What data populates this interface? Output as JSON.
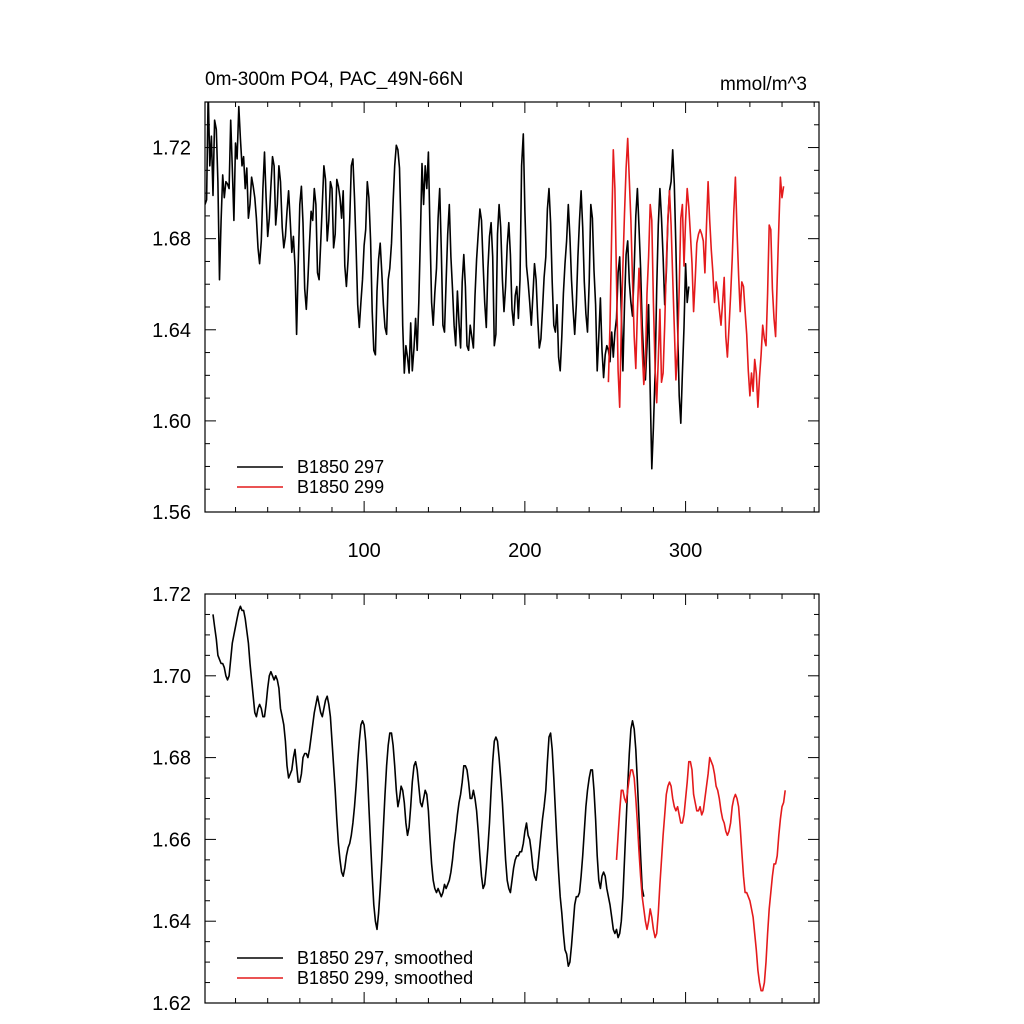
{
  "colors": {
    "run_297": "#000000",
    "run_299": "#e41a1c",
    "axes": "#000000"
  },
  "chart_data": [
    {
      "type": "line",
      "title": "0m-300m PO4, PAC_49N-66N",
      "units": "mmol/m^3",
      "xlim": [
        1,
        383
      ],
      "ylim": [
        1.56,
        1.74
      ],
      "y_ticks": [
        1.56,
        1.6,
        1.64,
        1.68,
        1.72
      ],
      "x_ticks": [
        100,
        200,
        300
      ],
      "legend_position": "bottom-left",
      "series": [
        {
          "name": "B1850 297",
          "color": "#000000",
          "x_start": 1,
          "values": [
            1.695,
            1.697,
            1.745,
            1.712,
            1.725,
            1.699,
            1.732,
            1.728,
            1.705,
            1.662,
            1.688,
            1.708,
            1.698,
            1.705,
            1.704,
            1.702,
            1.732,
            1.711,
            1.688,
            1.722,
            1.715,
            1.738,
            1.724,
            1.712,
            1.716,
            1.702,
            1.711,
            1.689,
            1.695,
            1.707,
            1.703,
            1.698,
            1.689,
            1.676,
            1.669,
            1.679,
            1.702,
            1.718,
            1.698,
            1.681,
            1.689,
            1.703,
            1.716,
            1.712,
            1.686,
            1.695,
            1.712,
            1.705,
            1.685,
            1.676,
            1.681,
            1.692,
            1.701,
            1.688,
            1.674,
            1.681,
            1.668,
            1.638,
            1.668,
            1.695,
            1.703,
            1.687,
            1.658,
            1.649,
            1.662,
            1.678,
            1.692,
            1.688,
            1.702,
            1.695,
            1.665,
            1.662,
            1.678,
            1.695,
            1.712,
            1.706,
            1.679,
            1.688,
            1.705,
            1.702,
            1.676,
            1.682,
            1.706,
            1.703,
            1.698,
            1.689,
            1.701,
            1.668,
            1.659,
            1.671,
            1.688,
            1.712,
            1.715,
            1.698,
            1.676,
            1.651,
            1.641,
            1.652,
            1.662,
            1.677,
            1.684,
            1.705,
            1.698,
            1.679,
            1.648,
            1.631,
            1.629,
            1.657,
            1.671,
            1.678,
            1.665,
            1.651,
            1.641,
            1.638,
            1.662,
            1.667,
            1.678,
            1.696,
            1.712,
            1.721,
            1.719,
            1.711,
            1.683,
            1.642,
            1.621,
            1.633,
            1.628,
            1.621,
            1.643,
            1.622,
            1.632,
            1.645,
            1.631,
            1.652,
            1.681,
            1.713,
            1.695,
            1.712,
            1.702,
            1.718,
            1.683,
            1.652,
            1.642,
            1.656,
            1.667,
            1.689,
            1.702,
            1.675,
            1.642,
            1.639,
            1.661,
            1.682,
            1.695,
            1.672,
            1.658,
            1.642,
            1.633,
            1.657,
            1.643,
            1.632,
            1.661,
            1.673,
            1.659,
            1.633,
            1.631,
            1.642,
            1.637,
            1.632,
            1.655,
            1.671,
            1.682,
            1.693,
            1.688,
            1.669,
            1.652,
            1.641,
            1.667,
            1.681,
            1.687,
            1.672,
            1.633,
            1.638,
            1.682,
            1.695,
            1.685,
            1.662,
            1.648,
            1.659,
            1.677,
            1.687,
            1.673,
            1.649,
            1.642,
            1.655,
            1.659,
            1.645,
            1.662,
            1.712,
            1.726,
            1.692,
            1.668,
            1.661,
            1.652,
            1.642,
            1.655,
            1.669,
            1.662,
            1.645,
            1.632,
            1.636,
            1.649,
            1.663,
            1.672,
            1.693,
            1.702,
            1.687,
            1.661,
            1.642,
            1.639,
            1.651,
            1.628,
            1.622,
            1.637,
            1.656,
            1.669,
            1.679,
            1.695,
            1.681,
            1.662,
            1.649,
            1.638,
            1.651,
            1.672,
            1.688,
            1.701,
            1.685,
            1.661,
            1.647,
            1.639,
            1.661,
            1.695,
            1.689,
            1.666,
            1.651,
            1.622,
            1.637,
            1.654,
            1.631,
            1.619,
            1.629,
            1.633,
            1.631,
            1.626,
            1.639,
            1.628,
            1.639,
            1.645,
            1.665,
            1.672,
            1.648,
            1.622,
            1.651,
            1.673,
            1.679,
            1.661,
            1.652,
            1.646,
            1.667,
            1.69,
            1.702,
            1.685,
            1.667,
            1.642,
            1.627,
            1.618,
            1.633,
            1.651,
            1.613,
            1.579,
            1.597,
            1.621,
            1.658,
            1.686,
            1.702,
            1.689,
            1.672,
            1.651,
            1.665,
            1.688,
            1.701,
            1.705,
            1.719,
            1.704,
            1.676,
            1.642,
            1.611,
            1.599,
            1.621,
            1.641,
            1.669,
            1.652,
            1.659
          ]
        },
        {
          "name": "B1850 299",
          "color": "#e41a1c",
          "x_start": 252,
          "values": [
            1.617,
            1.642,
            1.683,
            1.719,
            1.702,
            1.662,
            1.622,
            1.606,
            1.642,
            1.668,
            1.691,
            1.711,
            1.724,
            1.706,
            1.688,
            1.662,
            1.637,
            1.623,
            1.648,
            1.667,
            1.652,
            1.631,
            1.616,
            1.625,
            1.656,
            1.672,
            1.695,
            1.688,
            1.652,
            1.623,
            1.608,
            1.627,
            1.649,
            1.617,
            1.621,
            1.642,
            1.669,
            1.689,
            1.701,
            1.686,
            1.663,
            1.641,
            1.618,
            1.632,
            1.658,
            1.689,
            1.695,
            1.668,
            1.688,
            1.702,
            1.694,
            1.682,
            1.669,
            1.648,
            1.662,
            1.678,
            1.682,
            1.684,
            1.682,
            1.679,
            1.665,
            1.686,
            1.705,
            1.688,
            1.675,
            1.665,
            1.652,
            1.661,
            1.657,
            1.649,
            1.642,
            1.652,
            1.663,
            1.637,
            1.628,
            1.641,
            1.655,
            1.671,
            1.692,
            1.707,
            1.684,
            1.664,
            1.648,
            1.661,
            1.659,
            1.648,
            1.638,
            1.622,
            1.611,
            1.621,
            1.613,
            1.627,
            1.621,
            1.606,
            1.619,
            1.629,
            1.642,
            1.636,
            1.633,
            1.656,
            1.686,
            1.684,
            1.658,
            1.645,
            1.637,
            1.662,
            1.685,
            1.707,
            1.698,
            1.703
          ]
        }
      ]
    },
    {
      "type": "line",
      "ylim": [
        1.62,
        1.72
      ],
      "y_ticks": [
        1.62,
        1.64,
        1.66,
        1.68,
        1.7,
        1.72
      ],
      "xlim": [
        1,
        383
      ],
      "legend_position": "bottom-left",
      "series": [
        {
          "name": "B1850 297, smoothed",
          "color": "#000000",
          "x_start": 6,
          "values": [
            1.715,
            1.712,
            1.709,
            1.705,
            1.704,
            1.703,
            1.703,
            1.702,
            1.7,
            1.699,
            1.7,
            1.704,
            1.708,
            1.71,
            1.712,
            1.714,
            1.716,
            1.717,
            1.716,
            1.716,
            1.714,
            1.711,
            1.708,
            1.703,
            1.699,
            1.695,
            1.691,
            1.69,
            1.692,
            1.693,
            1.692,
            1.69,
            1.69,
            1.693,
            1.697,
            1.7,
            1.701,
            1.7,
            1.699,
            1.7,
            1.699,
            1.697,
            1.692,
            1.69,
            1.688,
            1.684,
            1.678,
            1.675,
            1.676,
            1.677,
            1.68,
            1.682,
            1.678,
            1.674,
            1.674,
            1.676,
            1.68,
            1.681,
            1.681,
            1.68,
            1.682,
            1.685,
            1.688,
            1.691,
            1.693,
            1.695,
            1.693,
            1.691,
            1.69,
            1.692,
            1.694,
            1.695,
            1.693,
            1.69,
            1.684,
            1.678,
            1.672,
            1.665,
            1.659,
            1.655,
            1.652,
            1.651,
            1.653,
            1.656,
            1.658,
            1.659,
            1.661,
            1.664,
            1.668,
            1.673,
            1.679,
            1.684,
            1.688,
            1.689,
            1.688,
            1.684,
            1.677,
            1.668,
            1.659,
            1.651,
            1.644,
            1.64,
            1.638,
            1.642,
            1.648,
            1.655,
            1.663,
            1.671,
            1.678,
            1.683,
            1.686,
            1.686,
            1.683,
            1.678,
            1.672,
            1.668,
            1.67,
            1.673,
            1.672,
            1.669,
            1.664,
            1.661,
            1.663,
            1.668,
            1.674,
            1.678,
            1.679,
            1.677,
            1.673,
            1.669,
            1.668,
            1.67,
            1.672,
            1.671,
            1.667,
            1.66,
            1.654,
            1.65,
            1.648,
            1.647,
            1.648,
            1.647,
            1.646,
            1.647,
            1.649,
            1.648,
            1.649,
            1.65,
            1.652,
            1.655,
            1.659,
            1.662,
            1.666,
            1.669,
            1.671,
            1.674,
            1.678,
            1.678,
            1.677,
            1.674,
            1.67,
            1.67,
            1.672,
            1.67,
            1.667,
            1.662,
            1.656,
            1.651,
            1.648,
            1.649,
            1.653,
            1.658,
            1.664,
            1.672,
            1.679,
            1.684,
            1.685,
            1.684,
            1.68,
            1.675,
            1.669,
            1.662,
            1.655,
            1.65,
            1.648,
            1.647,
            1.65,
            1.653,
            1.655,
            1.656,
            1.656,
            1.657,
            1.657,
            1.659,
            1.662,
            1.664,
            1.661,
            1.66,
            1.657,
            1.653,
            1.651,
            1.65,
            1.653,
            1.657,
            1.661,
            1.665,
            1.668,
            1.672,
            1.679,
            1.685,
            1.686,
            1.682,
            1.675,
            1.667,
            1.659,
            1.652,
            1.646,
            1.642,
            1.637,
            1.633,
            1.632,
            1.629,
            1.63,
            1.634,
            1.639,
            1.644,
            1.646,
            1.646,
            1.647,
            1.651,
            1.656,
            1.662,
            1.668,
            1.672,
            1.675,
            1.677,
            1.677,
            1.672,
            1.665,
            1.656,
            1.65,
            1.648,
            1.651,
            1.652,
            1.651,
            1.648,
            1.646,
            1.644,
            1.641,
            1.638,
            1.637,
            1.638,
            1.636,
            1.637,
            1.64,
            1.646,
            1.655,
            1.664,
            1.673,
            1.681,
            1.687,
            1.689,
            1.687,
            1.682,
            1.674,
            1.665,
            1.656,
            1.648,
            1.646
          ]
        },
        {
          "name": "B1850 299, smoothed",
          "color": "#e41a1c",
          "x_start": 257,
          "values": [
            1.655,
            1.661,
            1.667,
            1.672,
            1.672,
            1.67,
            1.669,
            1.672,
            1.675,
            1.677,
            1.677,
            1.675,
            1.67,
            1.664,
            1.657,
            1.651,
            1.646,
            1.643,
            1.64,
            1.638,
            1.64,
            1.643,
            1.641,
            1.638,
            1.636,
            1.637,
            1.642,
            1.649,
            1.655,
            1.661,
            1.666,
            1.671,
            1.673,
            1.674,
            1.673,
            1.67,
            1.668,
            1.667,
            1.668,
            1.666,
            1.664,
            1.664,
            1.666,
            1.67,
            1.674,
            1.679,
            1.679,
            1.677,
            1.671,
            1.669,
            1.667,
            1.667,
            1.668,
            1.666,
            1.667,
            1.67,
            1.673,
            1.676,
            1.68,
            1.679,
            1.678,
            1.676,
            1.673,
            1.672,
            1.67,
            1.667,
            1.665,
            1.664,
            1.662,
            1.661,
            1.662,
            1.664,
            1.668,
            1.67,
            1.671,
            1.67,
            1.668,
            1.663,
            1.657,
            1.651,
            1.647,
            1.647,
            1.646,
            1.645,
            1.643,
            1.641,
            1.637,
            1.633,
            1.628,
            1.625,
            1.623,
            1.623,
            1.625,
            1.63,
            1.637,
            1.643,
            1.647,
            1.651,
            1.654,
            1.654,
            1.656,
            1.661,
            1.665,
            1.668,
            1.669,
            1.672
          ]
        }
      ]
    }
  ]
}
